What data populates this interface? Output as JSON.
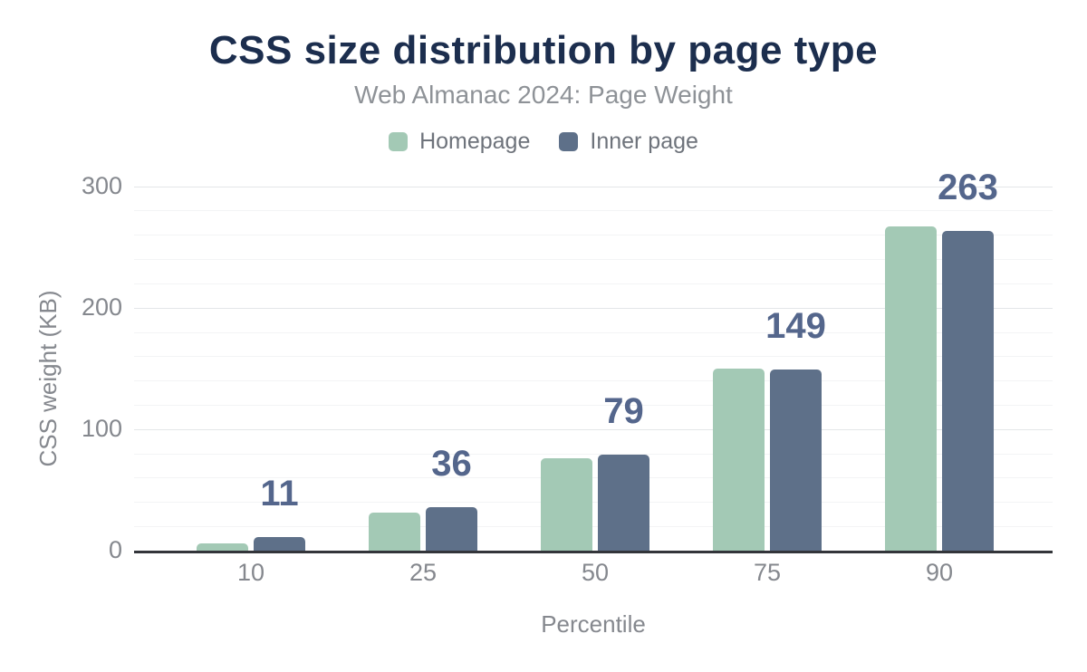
{
  "chart_data": {
    "type": "bar",
    "title": "CSS size distribution by page type",
    "subtitle": "Web Almanac 2024: Page Weight",
    "xlabel": "Percentile",
    "ylabel": "CSS weight (KB)",
    "categories": [
      "10",
      "25",
      "50",
      "75",
      "90"
    ],
    "series": [
      {
        "name": "Homepage",
        "color": "#a3c9b5",
        "values": [
          6,
          31,
          76,
          150,
          267
        ]
      },
      {
        "name": "Inner page",
        "color": "#5e7089",
        "values": [
          11,
          36,
          79,
          149,
          263
        ]
      }
    ],
    "bar_labels": {
      "labeled_series": "Inner page",
      "values": [
        "11",
        "36",
        "79",
        "149",
        "263"
      ],
      "color": "#54668c"
    },
    "yticks": [
      "0",
      "100",
      "200",
      "300"
    ],
    "ytick_values": [
      0,
      100,
      200,
      300
    ],
    "ylim": [
      0,
      300
    ],
    "minor_grid_step": 20,
    "major_grid_step": 100,
    "grid": true,
    "legend_position": "top"
  },
  "colors": {
    "title": "#1c2e4e",
    "subtitle": "#8e9297",
    "axis_text": "#85888e",
    "legend_text": "#6e737b",
    "axis_line": "#33353a",
    "grid_major": "#e4e6e8",
    "grid_minor": "#f3f4f5",
    "background": "#ffffff"
  }
}
